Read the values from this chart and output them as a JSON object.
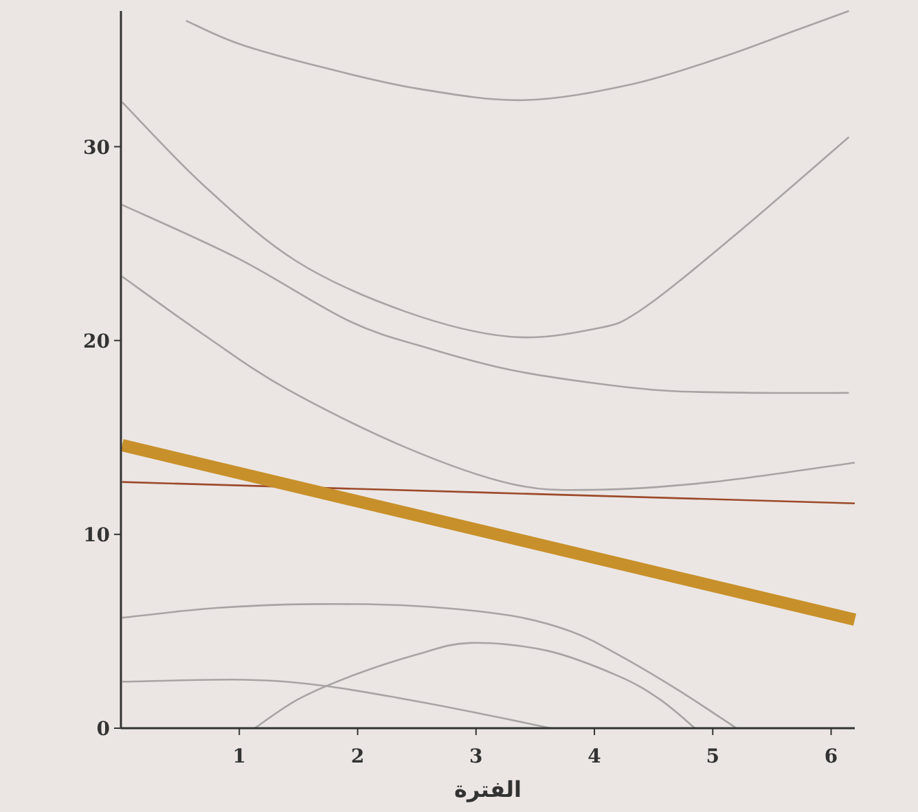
{
  "chart_data": {
    "type": "line",
    "xlabel": "الفترة",
    "xlim": [
      0,
      6.2
    ],
    "ylim": [
      0,
      37
    ],
    "xticks": [
      1,
      2,
      3,
      4,
      5,
      6
    ],
    "yticks": [
      0,
      10,
      20,
      30
    ],
    "grid": false,
    "marker": "none",
    "line_style": "solid",
    "series": [
      {
        "color": "#a8a4a4",
        "x": [
          0.55,
          1.0,
          1.7,
          2.5,
          3.4,
          4.3,
          5.07,
          5.7,
          6.15
        ],
        "values": [
          36.5,
          35.3,
          34.1,
          33.0,
          32.4,
          33.2,
          34.6,
          36.0,
          37.0
        ]
      },
      {
        "color": "#a8a4a4",
        "x": [
          0.01,
          0.7,
          1.48,
          2.4,
          3.28,
          4.0,
          4.4,
          5.2,
          6.15
        ],
        "values": [
          32.3,
          28.0,
          24.1,
          21.5,
          20.2,
          20.6,
          21.6,
          25.5,
          30.5
        ]
      },
      {
        "color": "#a8a4a4",
        "x": [
          0.01,
          1.0,
          1.93,
          2.6,
          3.28,
          4.0,
          4.63,
          5.4,
          6.15
        ],
        "values": [
          27.0,
          24.2,
          21.0,
          19.6,
          18.5,
          17.8,
          17.4,
          17.3,
          17.3
        ]
      },
      {
        "color": "#a8a4a4",
        "x": [
          0.01,
          0.7,
          1.4,
          2.4,
          3.3,
          4.0,
          5.0,
          6.2
        ],
        "values": [
          23.3,
          20.3,
          17.5,
          14.5,
          12.6,
          12.3,
          12.7,
          13.7
        ]
      },
      {
        "color": "#a8a4a4",
        "x": [
          0.01,
          0.8,
          1.63,
          2.5,
          3.3,
          3.8,
          4.2,
          4.7,
          5.2
        ],
        "values": [
          5.7,
          6.2,
          6.4,
          6.3,
          5.8,
          5.0,
          3.8,
          2.0,
          0
        ]
      },
      {
        "color": "#a8a4a4",
        "x": [
          1.13,
          1.5,
          1.95,
          2.5,
          2.95,
          3.6,
          4.2,
          4.55,
          4.85
        ],
        "values": [
          0,
          1.5,
          2.7,
          3.8,
          4.4,
          4.0,
          2.7,
          1.5,
          0
        ]
      },
      {
        "color": "#a8a4a4",
        "x": [
          0.01,
          1.04,
          1.7,
          2.4,
          3.0,
          3.63
        ],
        "values": [
          2.4,
          2.5,
          2.2,
          1.5,
          0.8,
          0
        ]
      },
      {
        "color": "#9c4a2a",
        "x": [
          0.01,
          6.2
        ],
        "values": [
          12.7,
          11.6
        ]
      },
      {
        "color": "#c8902a",
        "x": [
          0.01,
          6.2
        ],
        "values": [
          14.6,
          5.6
        ]
      }
    ]
  }
}
